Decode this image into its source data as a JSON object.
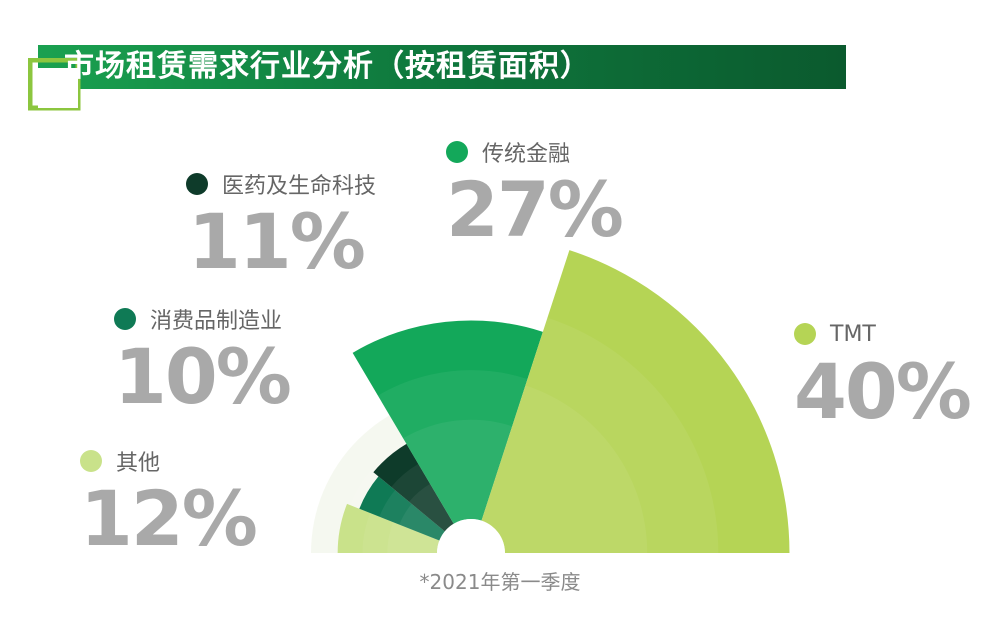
{
  "header": {
    "title": "市场租赁需求行业分析（按租赁面积）"
  },
  "footnote": "*2021年第一季度",
  "colors": {
    "title_start": "#1aa150",
    "title_end": "#0b5a2e",
    "pct_text": "#a9a9a9"
  },
  "chart_data": {
    "type": "pie",
    "title": "市场租赁需求行业分析（按租赁面积）",
    "subtitle": "*2021年第一季度",
    "unit": "%",
    "slices": [
      {
        "label": "其他",
        "value": 12,
        "color": "#c9e28a"
      },
      {
        "label": "消费品制造业",
        "value": 10,
        "color": "#0f7a55"
      },
      {
        "label": "医药及生命科技",
        "value": 11,
        "color": "#0e3b2a"
      },
      {
        "label": "传统金融",
        "value": 27,
        "color": "#13a85a"
      },
      {
        "label": "TMT",
        "value": 40,
        "color": "#b5d455"
      }
    ],
    "legend": [
      {
        "label": "医药及生命科技",
        "pct": "11%",
        "color": "#0e3b2a"
      },
      {
        "label": "传统金融",
        "pct": "27%",
        "color": "#13a85a"
      },
      {
        "label": "消费品制造业",
        "pct": "10%",
        "color": "#0f7a55"
      },
      {
        "label": "TMT",
        "pct": "40%",
        "color": "#b5d455"
      },
      {
        "label": "其他",
        "pct": "12%",
        "color": "#c9e28a"
      }
    ]
  }
}
